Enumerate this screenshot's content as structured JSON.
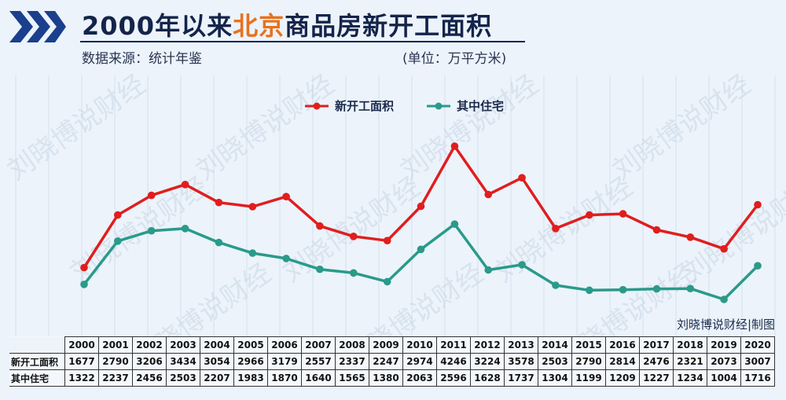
{
  "header": {
    "title_part1": "2000年以来",
    "title_highlight": "北京",
    "title_part2": "商品房新开工面积",
    "source": "数据来源：统计年鉴",
    "unit": "(单位：万平方米)",
    "credit": "刘晓博说财经|制图"
  },
  "watermark": "刘晓博说财经",
  "colors": {
    "new_starts": "#e01e1e",
    "residential": "#2a9a8a",
    "title_highlight": "#e8711c",
    "background": "#ecf3fb",
    "chevron": "#1a3f8c"
  },
  "chart_data": {
    "type": "line",
    "x": [
      "2000",
      "2001",
      "2002",
      "2003",
      "2004",
      "2005",
      "2006",
      "2007",
      "2008",
      "2009",
      "2010",
      "2011",
      "2012",
      "2013",
      "2014",
      "2015",
      "2016",
      "2017",
      "2018",
      "2019",
      "2020"
    ],
    "series": [
      {
        "name": "新开工面积",
        "values": [
          1677,
          2790,
          3206,
          3434,
          3054,
          2966,
          3179,
          2557,
          2337,
          2247,
          2974,
          4246,
          3224,
          3578,
          2503,
          2790,
          2814,
          2476,
          2321,
          2073,
          3007
        ]
      },
      {
        "name": "其中住宅",
        "values": [
          1322,
          2237,
          2456,
          2503,
          2207,
          1983,
          1870,
          1640,
          1565,
          1380,
          2063,
          2596,
          1628,
          1737,
          1304,
          1199,
          1209,
          1227,
          1234,
          1004,
          1716
        ]
      }
    ],
    "legend_position": "top-center",
    "grid": true
  },
  "table": {
    "row_labels": [
      "新开工面积",
      "其中住宅"
    ]
  }
}
